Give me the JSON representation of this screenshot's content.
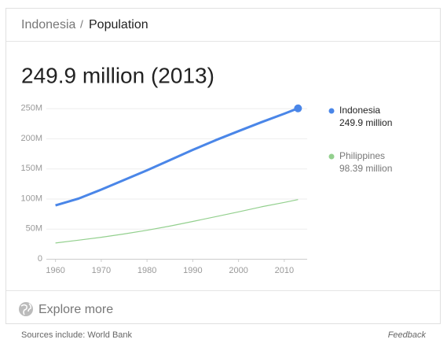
{
  "header": {
    "entity": "Indonesia",
    "separator": "/",
    "attribute": "Population"
  },
  "headline": "249.9 million (2013)",
  "chart_data": {
    "type": "line",
    "x": [
      1960,
      1965,
      1970,
      1975,
      1980,
      1985,
      1990,
      1995,
      2000,
      2005,
      2010,
      2013
    ],
    "series": [
      {
        "name": "Indonesia",
        "color": "#4a86e8",
        "values": [
          88.7,
          100,
          115,
          131,
          147,
          164,
          181,
          197,
          212,
          227,
          241,
          249.9
        ],
        "value_labels": [
          null,
          null,
          null,
          null,
          null,
          null,
          null,
          null,
          null,
          null,
          null,
          "249.9 million"
        ]
      },
      {
        "name": "Philippines",
        "color": "#93d08e",
        "values": [
          26.3,
          30.9,
          35.8,
          41.3,
          47.4,
          54.3,
          62,
          70,
          78,
          86.3,
          93.7,
          98.39
        ],
        "value_labels": [
          null,
          null,
          null,
          null,
          null,
          null,
          null,
          null,
          null,
          null,
          null,
          "98.39 million"
        ]
      }
    ],
    "xlim": [
      1958,
      2015
    ],
    "xticks": [
      1960,
      1970,
      1980,
      1990,
      2000,
      2010
    ],
    "ylim": [
      0,
      260
    ],
    "yticks": [
      0,
      {
        "value": 50,
        "label": "50M"
      },
      {
        "value": 100,
        "label": "100M"
      },
      {
        "value": 150,
        "label": "150M"
      },
      {
        "value": 200,
        "label": "200M"
      },
      {
        "value": 250,
        "label": "250M"
      }
    ],
    "grid": true
  },
  "footer": {
    "explore": "Explore more",
    "source": "Sources include: World Bank",
    "feedback": "Feedback"
  }
}
